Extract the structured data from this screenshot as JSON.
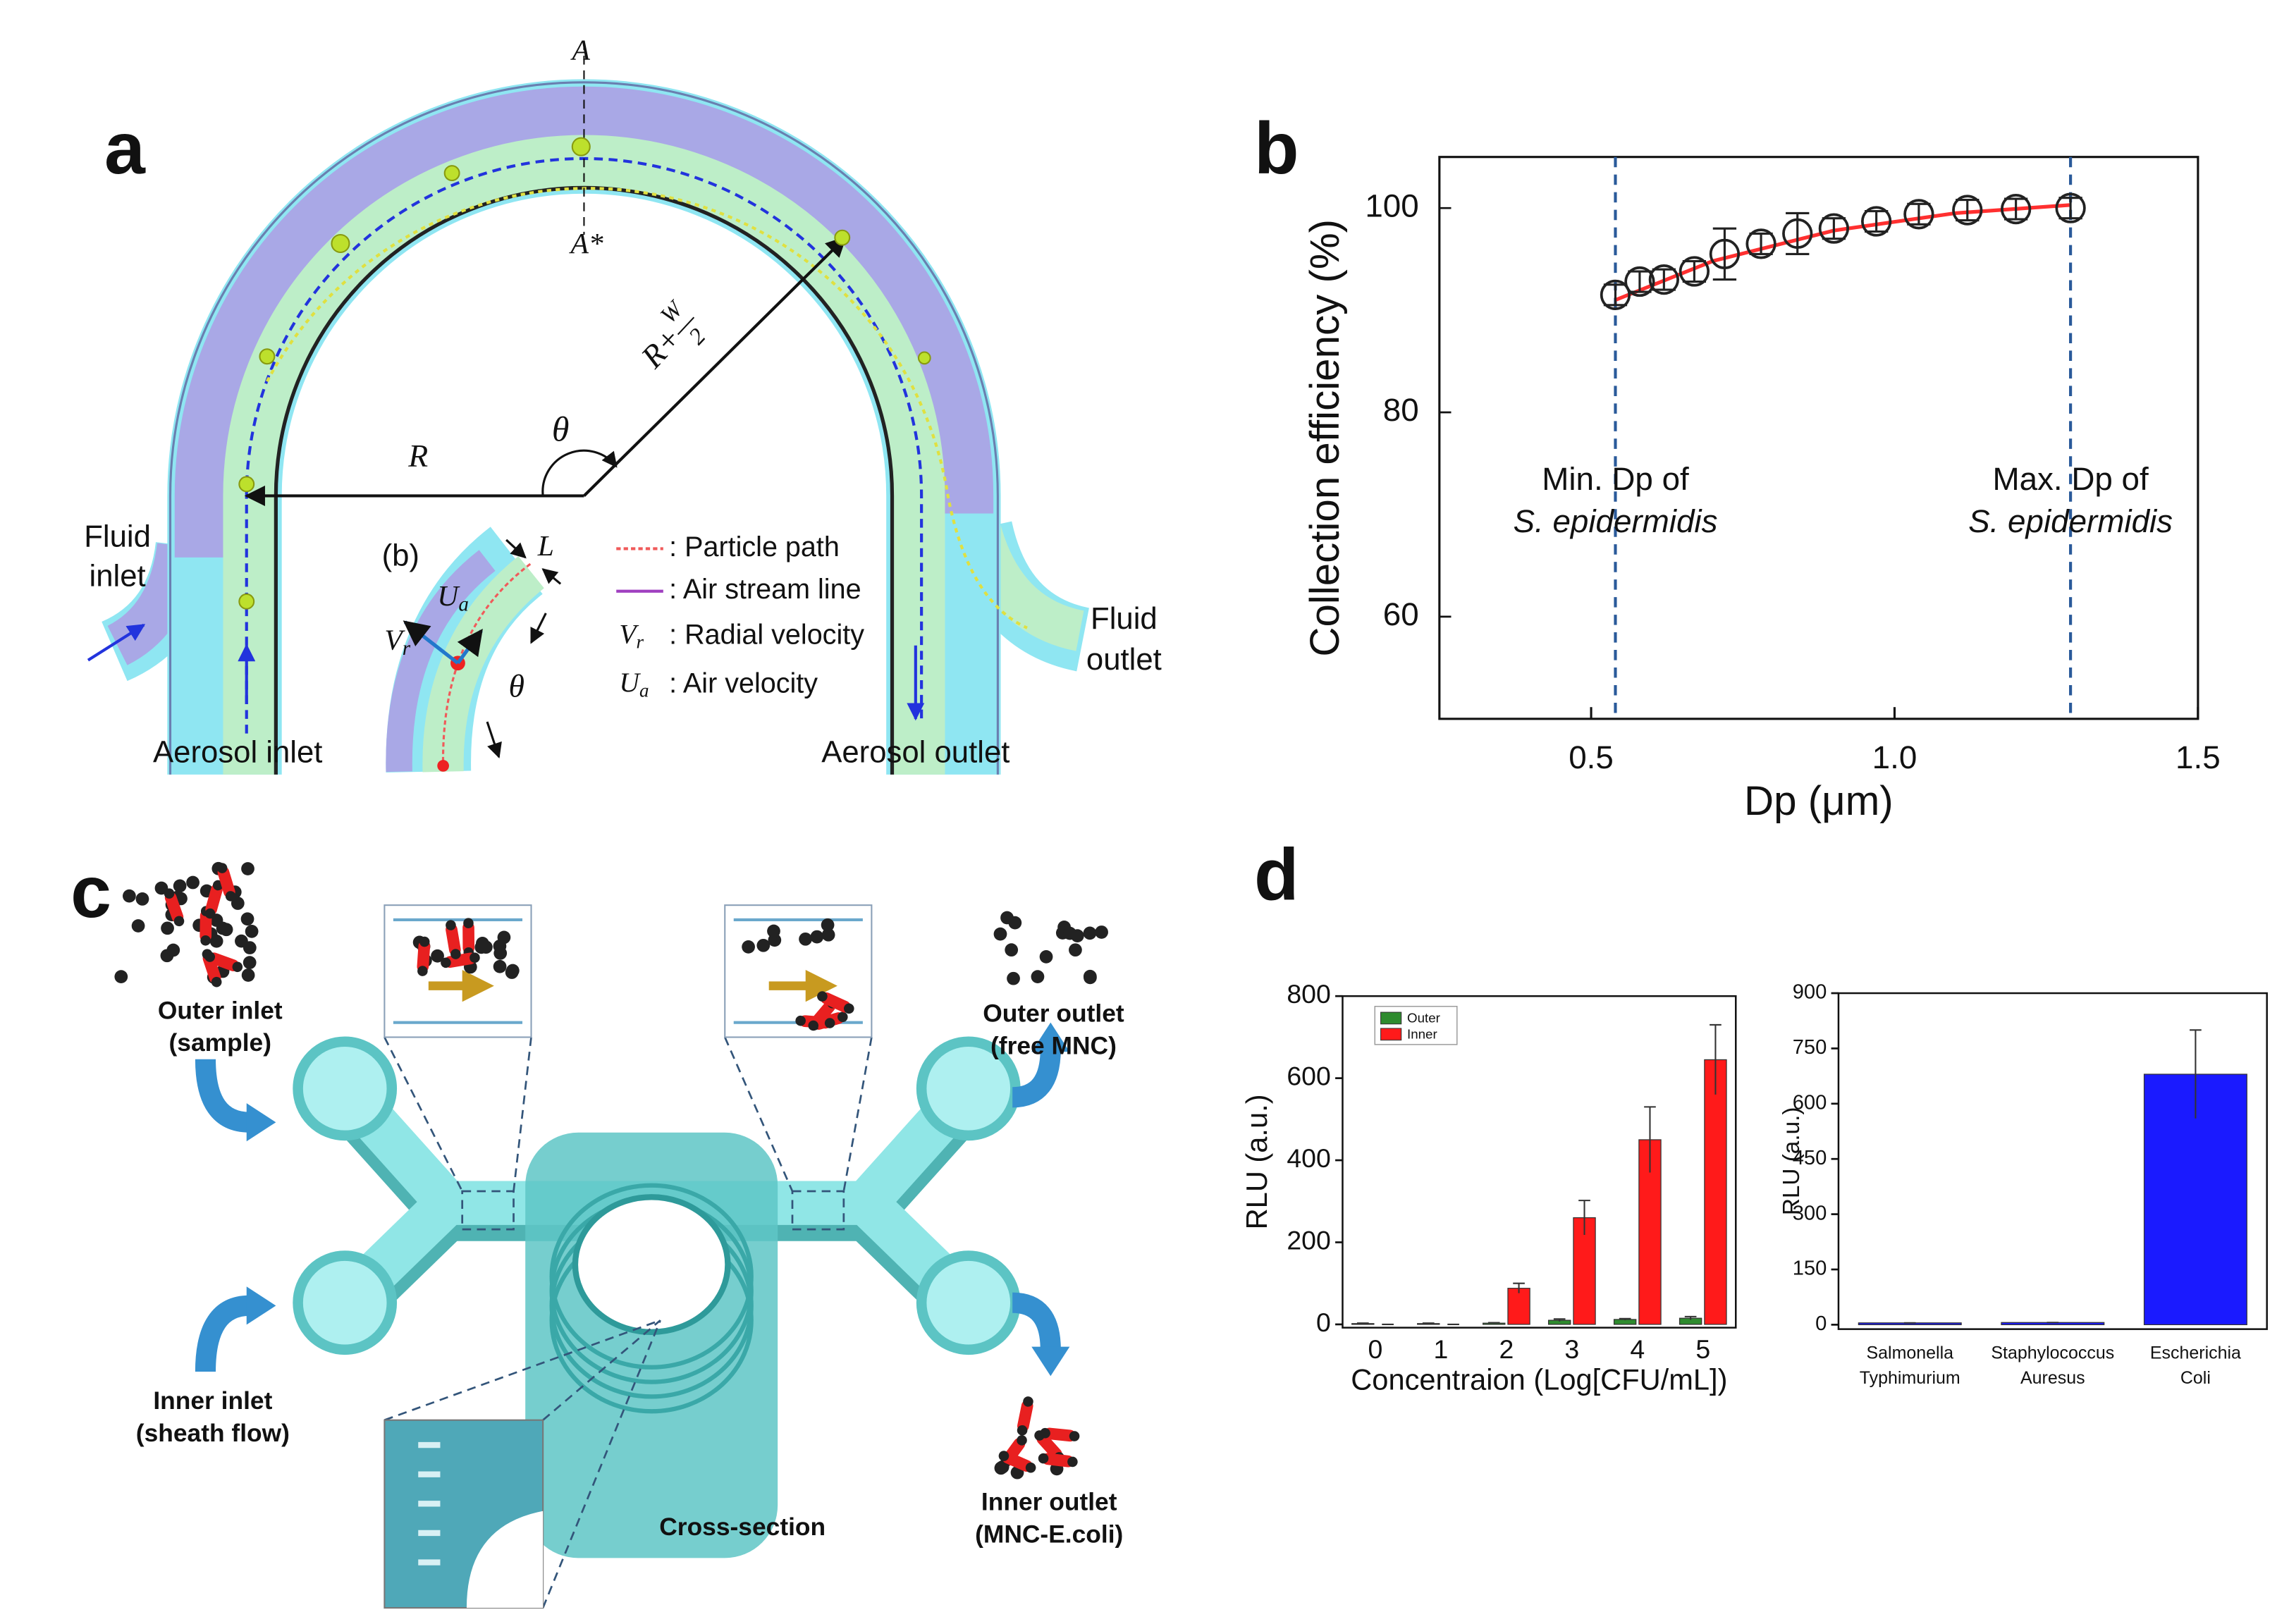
{
  "panel_labels": [
    "a",
    "b",
    "c",
    "d"
  ],
  "diagram_a": {
    "section_top": "A",
    "section_bottom": "A*",
    "radius": "R",
    "angle": "θ",
    "radius_outer": [
      "R+",
      "W",
      "2"
    ],
    "fluid_inlet": [
      "Fluid",
      "inlet"
    ],
    "aerosol_inlet": "Aerosol inlet",
    "aerosol_outlet": "Aerosol outlet",
    "fluid_outlet": [
      "Fluid",
      "outlet"
    ],
    "inset": {
      "label": "(b)",
      "L": "L",
      "Ua": [
        "U",
        "a"
      ],
      "Vr": [
        "V",
        "r"
      ],
      "theta": "θ"
    },
    "legend_lines": [
      {
        "text": ": Particle path",
        "color": "#f05a5a"
      },
      {
        "text": ": Air stream line",
        "color": "#a040c0"
      }
    ],
    "legend_symbols": [
      {
        "symbol": "V",
        "sub": "r",
        "text": ": Radial velocity"
      },
      {
        "symbol": "U",
        "sub": "a",
        "text": ": Air velocity"
      }
    ]
  },
  "diagram_c": {
    "outer_inlet": [
      "Outer inlet",
      "(sample)"
    ],
    "inner_inlet": [
      "Inner inlet",
      "(sheath flow)"
    ],
    "outer_outlet": [
      "Outer outlet",
      "(free MNC)"
    ],
    "inner_outlet": [
      "Inner outlet",
      "(MNC-E.coli)"
    ],
    "cross_section": "Cross-section"
  },
  "chart_data": [
    {
      "type": "scatter",
      "x_label": "Dp (μm)",
      "y_label": "Collection efficiency (%)",
      "x": [
        0.54,
        0.58,
        0.62,
        0.67,
        0.72,
        0.78,
        0.84,
        0.9,
        0.97,
        1.04,
        1.12,
        1.2,
        1.29
      ],
      "values": [
        91.5,
        92.8,
        93,
        93.8,
        95.5,
        96.5,
        97.5,
        98,
        98.7,
        99.4,
        99.8,
        99.9,
        100
      ],
      "errors": [
        1,
        1,
        1,
        1,
        2.5,
        1,
        2,
        1,
        1,
        1,
        1,
        1,
        1
      ],
      "color": "#222222",
      "fit": {
        "x": [
          0.54,
          0.7,
          0.9,
          1.1,
          1.29
        ],
        "y": [
          91,
          94.8,
          97.8,
          99.5,
          100.3
        ],
        "color": "#ff3030"
      },
      "annotations": [
        {
          "x": 0.54,
          "lines": [
            "Min. Dp of",
            "S. epidermidis"
          ]
        },
        {
          "x": 1.29,
          "lines": [
            "Max. Dp of",
            "S. epidermidis"
          ]
        }
      ],
      "xlim": [
        0.25,
        1.5
      ],
      "xticks": [
        0.5,
        {
          "value": 1,
          "label": "1.0"
        },
        1.5
      ],
      "ylim": [
        50,
        105
      ],
      "yticks": [
        60,
        80,
        100
      ]
    },
    {
      "type": "bar",
      "x_label": "Concentraion (Log[CFU/mL])",
      "y_label": "RLU (a.u.)",
      "categories": [
        "0",
        "1",
        "2",
        "3",
        "4",
        "5"
      ],
      "series": [
        {
          "name": "Outer",
          "color": "#2e8b2e",
          "values": [
            2,
            2,
            3,
            10,
            12,
            15
          ],
          "errors": [
            1,
            1,
            1,
            3,
            2,
            4
          ]
        },
        {
          "name": "Inner",
          "color": "#ff1a1a",
          "values": [
            0,
            0,
            88,
            260,
            450,
            645
          ],
          "errors": [
            0,
            0,
            12,
            42,
            80,
            85
          ]
        }
      ],
      "legend": "upper left",
      "ylim": [
        -8,
        800
      ],
      "yticks": [
        0,
        200,
        400,
        600,
        800
      ]
    },
    {
      "type": "bar",
      "y_label": "RLU (a.u.)",
      "categories": [
        [
          "Salmonella",
          "Typhimurium"
        ],
        [
          "Staphylococcus",
          "Auresus"
        ],
        [
          "Escherichia",
          "Coli"
        ]
      ],
      "values": [
        5,
        6,
        680
      ],
      "errors": [
        0,
        0,
        120
      ],
      "color": "#1a1aff",
      "ylim": [
        -12,
        900
      ],
      "yticks": [
        0,
        150,
        300,
        450,
        600,
        750,
        900
      ]
    }
  ]
}
